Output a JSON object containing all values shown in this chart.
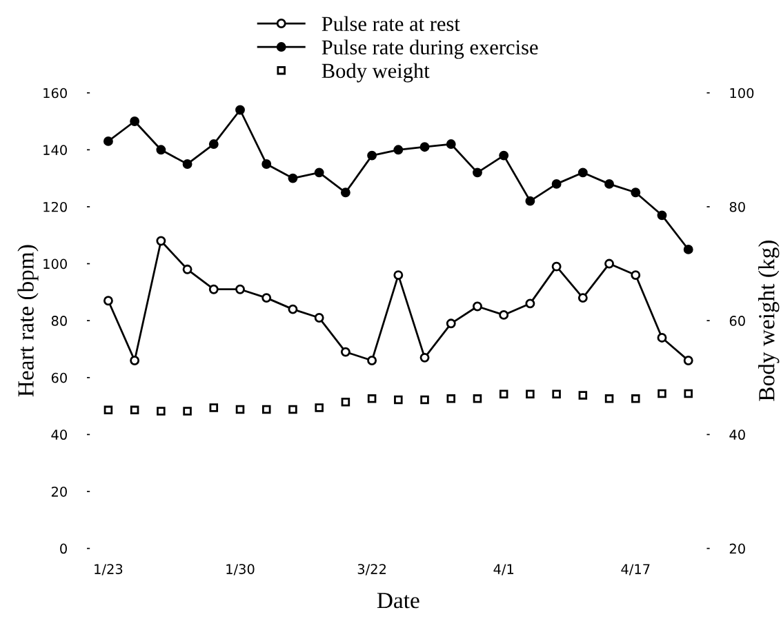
{
  "chart_data": {
    "type": "line",
    "xlabel": "Date",
    "ylabel": "Heart rate (bpm)",
    "y2label": "Body weight (kg)",
    "categories": [
      "1/23",
      null,
      null,
      null,
      null,
      "1/30",
      null,
      null,
      null,
      null,
      "3/22",
      null,
      null,
      null,
      null,
      "4/1",
      null,
      null,
      null,
      null,
      "4/17",
      null,
      null
    ],
    "series": [
      {
        "name": "Pulse rate at rest",
        "marker": "circle",
        "color": "#000000",
        "values": [
          87,
          66,
          108,
          98,
          91,
          91,
          88,
          84,
          81,
          69,
          66,
          96,
          67,
          79,
          85,
          82,
          86,
          99,
          88,
          100,
          96,
          74,
          66
        ]
      },
      {
        "name": "Pulse rate during exercise",
        "marker": "circle",
        "color": "#000000",
        "values": [
          143,
          150,
          140,
          135,
          142,
          154,
          135,
          130,
          132,
          125,
          138,
          140,
          141,
          142,
          132,
          138,
          122,
          128,
          132,
          128,
          125,
          117,
          105
        ]
      },
      {
        "name": "Body weight",
        "type": "scatter",
        "marker": "square",
        "axis": "y2",
        "color": "#000000",
        "values": [
          44.3,
          44.3,
          44.1,
          44.1,
          44.7,
          44.4,
          44.4,
          44.4,
          44.7,
          45.7,
          46.3,
          46.1,
          46.1,
          46.3,
          46.3,
          47.1,
          47.1,
          47.1,
          46.9,
          46.3,
          46.3,
          47.2,
          47.2
        ]
      }
    ],
    "ylim": [
      0,
      160
    ],
    "yticks": [
      0,
      20,
      40,
      60,
      80,
      100,
      120,
      140,
      160
    ],
    "y2lim": [
      20,
      100
    ],
    "y2ticks": [
      20,
      40,
      60,
      80,
      100
    ],
    "grid": false,
    "legend": "top"
  }
}
